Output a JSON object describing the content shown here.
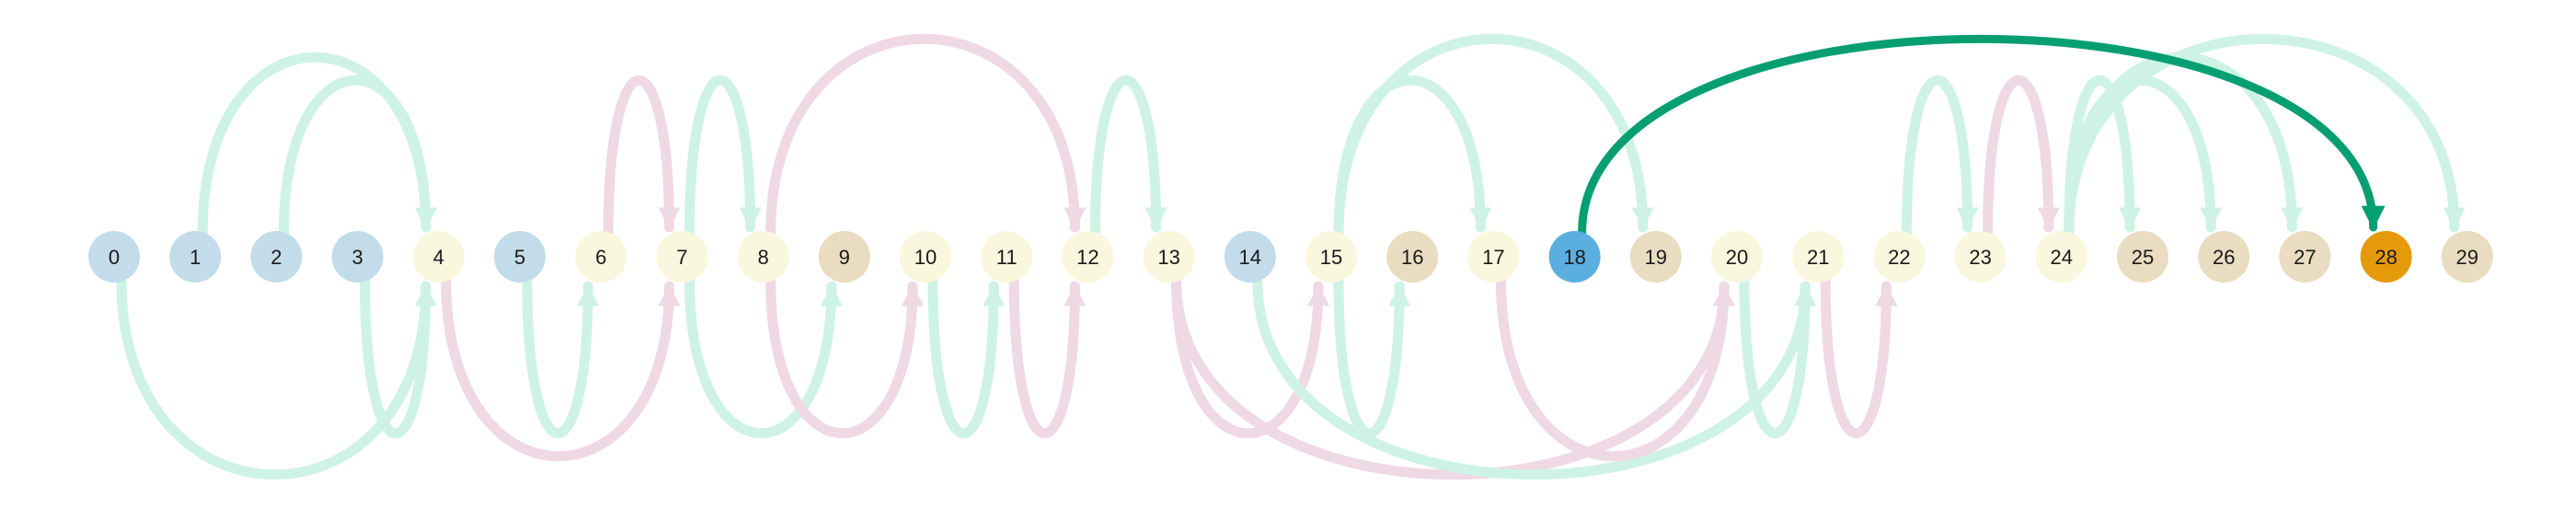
{
  "diagram": {
    "type": "arc-diagram",
    "colors": {
      "blue": "#c2dcea",
      "yellow": "#f9f7dd",
      "tan": "#eadcc0",
      "selected": "#5aaee0",
      "target": "#e59a0c",
      "edge_green": "#cef3e5",
      "edge_pink": "#efd9e4",
      "edge_highlight": "#079f72"
    },
    "nodes": [
      {
        "id": 0,
        "label": "0",
        "color": "blue"
      },
      {
        "id": 1,
        "label": "1",
        "color": "blue"
      },
      {
        "id": 2,
        "label": "2",
        "color": "blue"
      },
      {
        "id": 3,
        "label": "3",
        "color": "blue"
      },
      {
        "id": 4,
        "label": "4",
        "color": "yellow"
      },
      {
        "id": 5,
        "label": "5",
        "color": "blue"
      },
      {
        "id": 6,
        "label": "6",
        "color": "yellow"
      },
      {
        "id": 7,
        "label": "7",
        "color": "yellow"
      },
      {
        "id": 8,
        "label": "8",
        "color": "yellow"
      },
      {
        "id": 9,
        "label": "9",
        "color": "tan"
      },
      {
        "id": 10,
        "label": "10",
        "color": "yellow"
      },
      {
        "id": 11,
        "label": "11",
        "color": "yellow"
      },
      {
        "id": 12,
        "label": "12",
        "color": "yellow"
      },
      {
        "id": 13,
        "label": "13",
        "color": "yellow"
      },
      {
        "id": 14,
        "label": "14",
        "color": "blue"
      },
      {
        "id": 15,
        "label": "15",
        "color": "yellow"
      },
      {
        "id": 16,
        "label": "16",
        "color": "tan"
      },
      {
        "id": 17,
        "label": "17",
        "color": "yellow"
      },
      {
        "id": 18,
        "label": "18",
        "color": "selected"
      },
      {
        "id": 19,
        "label": "19",
        "color": "tan"
      },
      {
        "id": 20,
        "label": "20",
        "color": "yellow"
      },
      {
        "id": 21,
        "label": "21",
        "color": "yellow"
      },
      {
        "id": 22,
        "label": "22",
        "color": "yellow"
      },
      {
        "id": 23,
        "label": "23",
        "color": "yellow"
      },
      {
        "id": 24,
        "label": "24",
        "color": "yellow"
      },
      {
        "id": 25,
        "label": "25",
        "color": "tan"
      },
      {
        "id": 26,
        "label": "26",
        "color": "tan"
      },
      {
        "id": 27,
        "label": "27",
        "color": "tan"
      },
      {
        "id": 28,
        "label": "28",
        "color": "target"
      },
      {
        "id": 29,
        "label": "29",
        "color": "tan"
      }
    ],
    "edges": [
      {
        "from": 1,
        "to": 4,
        "side": "top",
        "color": "edge_green"
      },
      {
        "from": 2,
        "to": 4,
        "side": "top",
        "color": "edge_green"
      },
      {
        "from": 6,
        "to": 7,
        "side": "top",
        "color": "edge_pink"
      },
      {
        "from": 7,
        "to": 8,
        "side": "top",
        "color": "edge_green"
      },
      {
        "from": 8,
        "to": 12,
        "side": "top",
        "color": "edge_pink"
      },
      {
        "from": 12,
        "to": 13,
        "side": "top",
        "color": "edge_green"
      },
      {
        "from": 15,
        "to": 17,
        "side": "top",
        "color": "edge_green"
      },
      {
        "from": 15,
        "to": 19,
        "side": "top",
        "color": "edge_green"
      },
      {
        "from": 22,
        "to": 23,
        "side": "top",
        "color": "edge_green"
      },
      {
        "from": 23,
        "to": 24,
        "side": "top",
        "color": "edge_pink"
      },
      {
        "from": 24,
        "to": 25,
        "side": "top",
        "color": "edge_green"
      },
      {
        "from": 24,
        "to": 26,
        "side": "top",
        "color": "edge_green"
      },
      {
        "from": 24,
        "to": 27,
        "side": "top",
        "color": "edge_green"
      },
      {
        "from": 24,
        "to": 29,
        "side": "top",
        "color": "edge_green"
      },
      {
        "from": 18,
        "to": 28,
        "side": "top",
        "color": "edge_highlight",
        "highlight": true
      },
      {
        "from": 0,
        "to": 4,
        "side": "bottom",
        "color": "edge_green"
      },
      {
        "from": 3,
        "to": 4,
        "side": "bottom",
        "color": "edge_green"
      },
      {
        "from": 4,
        "to": 7,
        "side": "bottom",
        "color": "edge_pink"
      },
      {
        "from": 5,
        "to": 6,
        "side": "bottom",
        "color": "edge_green"
      },
      {
        "from": 7,
        "to": 9,
        "side": "bottom",
        "color": "edge_green"
      },
      {
        "from": 8,
        "to": 10,
        "side": "bottom",
        "color": "edge_pink"
      },
      {
        "from": 10,
        "to": 11,
        "side": "bottom",
        "color": "edge_green"
      },
      {
        "from": 11,
        "to": 12,
        "side": "bottom",
        "color": "edge_pink"
      },
      {
        "from": 13,
        "to": 15,
        "side": "bottom",
        "color": "edge_pink"
      },
      {
        "from": 13,
        "to": 20,
        "side": "bottom",
        "color": "edge_pink"
      },
      {
        "from": 14,
        "to": 21,
        "side": "bottom",
        "color": "edge_green"
      },
      {
        "from": 15,
        "to": 16,
        "side": "bottom",
        "color": "edge_green"
      },
      {
        "from": 17,
        "to": 20,
        "side": "bottom",
        "color": "edge_pink"
      },
      {
        "from": 20,
        "to": 21,
        "side": "bottom",
        "color": "edge_green"
      },
      {
        "from": 21,
        "to": 22,
        "side": "bottom",
        "color": "edge_pink"
      }
    ]
  }
}
